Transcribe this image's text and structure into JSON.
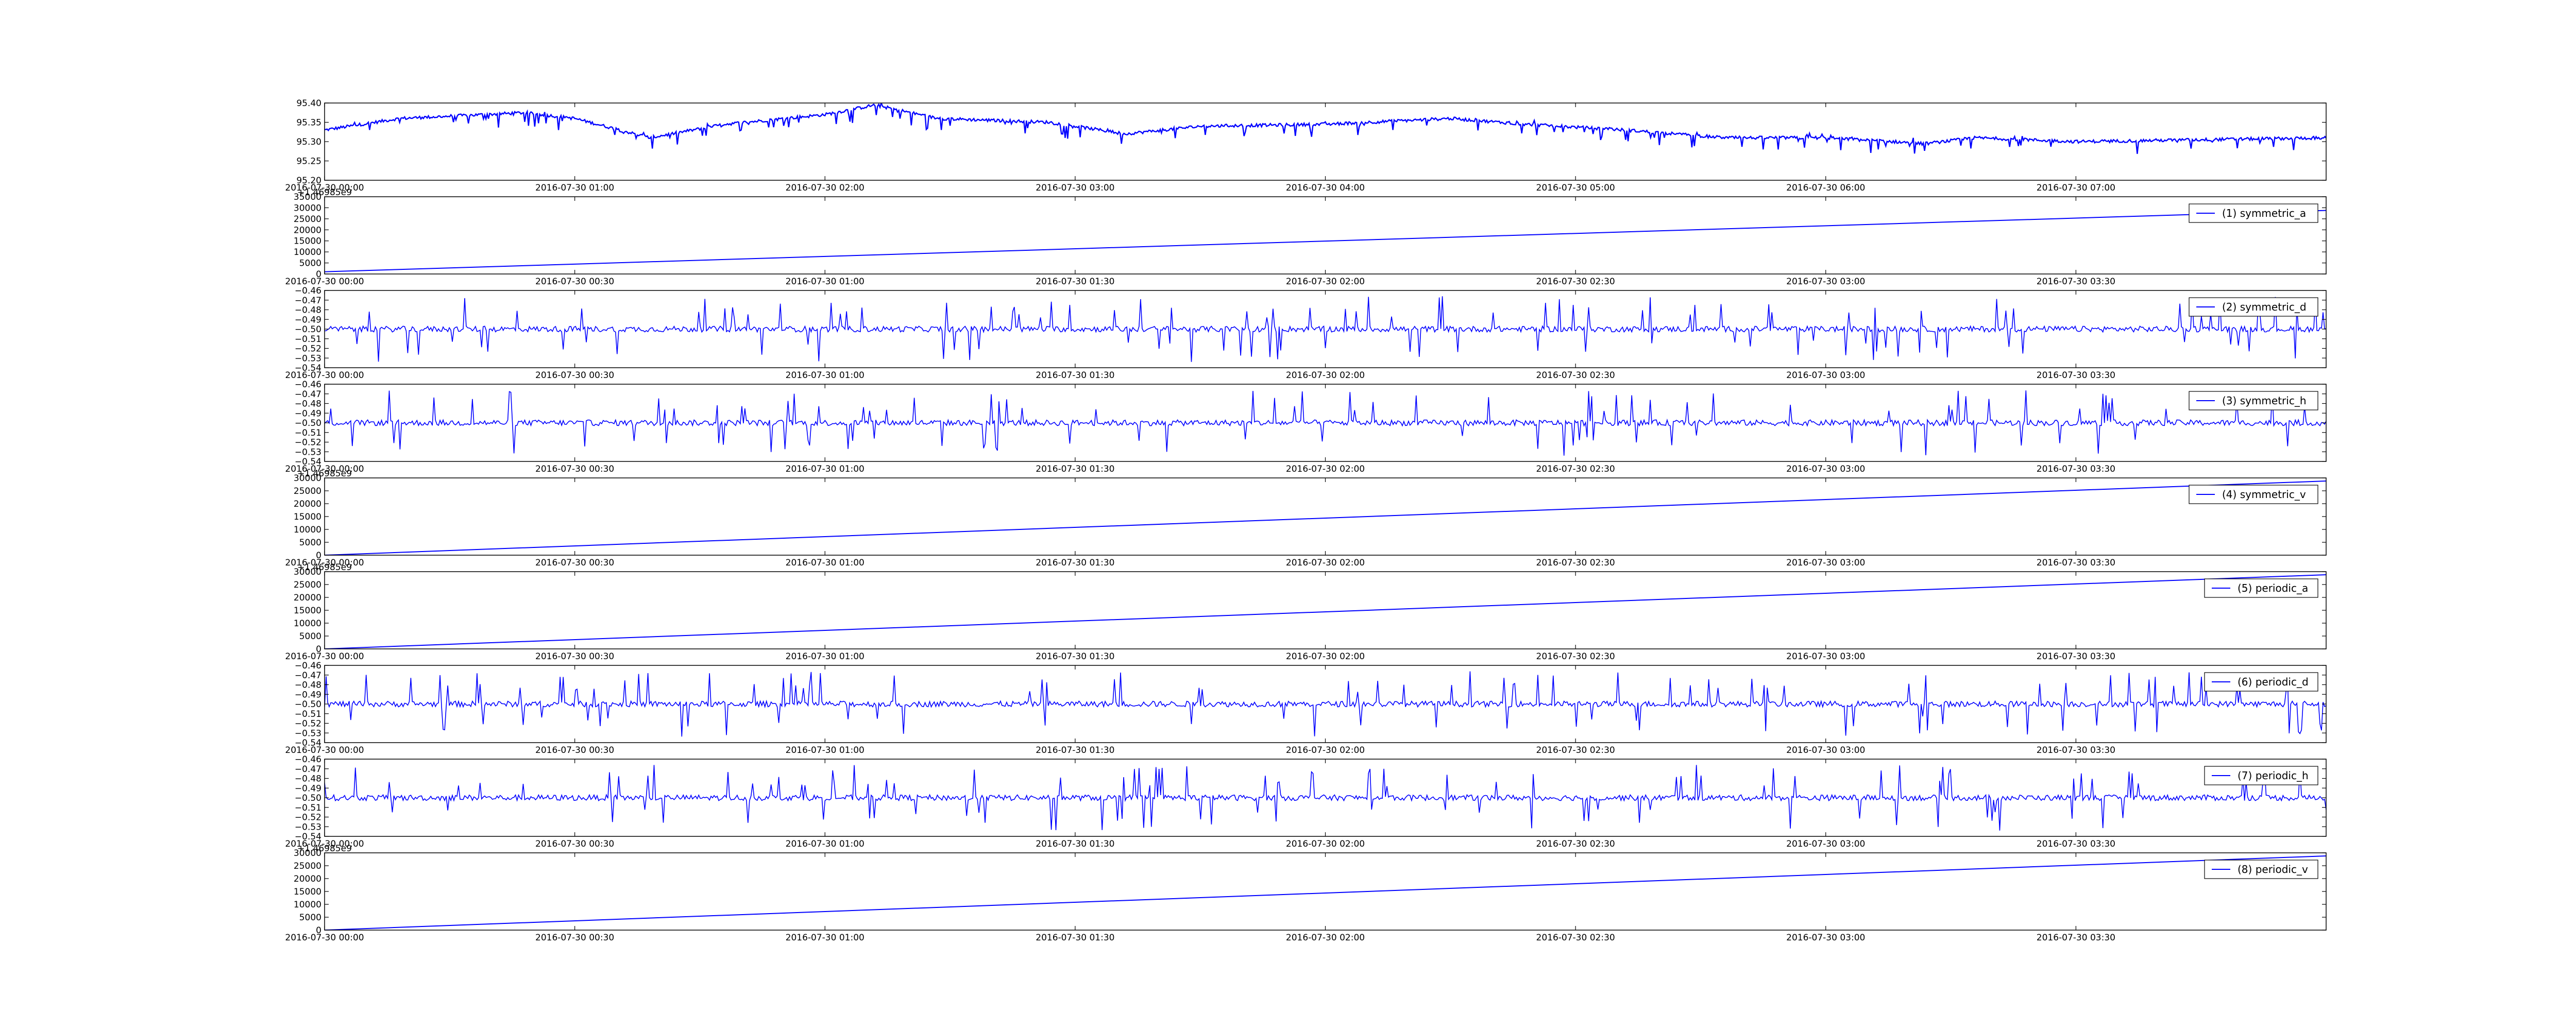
{
  "figure": {
    "background": "#ffffff",
    "line_color": "#0000ff"
  },
  "chart_data": [
    {
      "type": "line",
      "signal": "noisy",
      "xlim": [
        "2016-07-30 00:00",
        "2016-07-30 08:00"
      ],
      "x_ticks": [
        "2016-07-30 00:00",
        "2016-07-30 01:00",
        "2016-07-30 02:00",
        "2016-07-30 03:00",
        "2016-07-30 04:00",
        "2016-07-30 05:00",
        "2016-07-30 06:00",
        "2016-07-30 07:00"
      ],
      "ylim": [
        95.2,
        95.4
      ],
      "y_ticks": [
        "95.20",
        "95.25",
        "95.30",
        "95.35",
        "95.40"
      ],
      "offset_text": "",
      "legend": "",
      "trend": [
        [
          0,
          95.33
        ],
        [
          0.3,
          95.36
        ],
        [
          0.8,
          95.375
        ],
        [
          1.0,
          95.36
        ],
        [
          1.3,
          95.31
        ],
        [
          1.6,
          95.345
        ],
        [
          2.0,
          95.37
        ],
        [
          2.2,
          95.395
        ],
        [
          2.45,
          95.36
        ],
        [
          2.9,
          95.35
        ],
        [
          3.2,
          95.32
        ],
        [
          3.5,
          95.34
        ],
        [
          4.0,
          95.345
        ],
        [
          4.5,
          95.36
        ],
        [
          4.8,
          95.345
        ],
        [
          5.2,
          95.33
        ],
        [
          5.6,
          95.31
        ],
        [
          6.0,
          95.31
        ],
        [
          6.4,
          95.295
        ],
        [
          6.6,
          95.31
        ],
        [
          7.0,
          95.3
        ],
        [
          7.5,
          95.305
        ],
        [
          8.0,
          95.31
        ]
      ],
      "noise": 0.004,
      "spike_down": 0.035,
      "spike_up": 0.01
    },
    {
      "type": "line",
      "signal": "ramp",
      "xlim": [
        "2016-07-30 00:00",
        "2016-07-30 04:00"
      ],
      "x_ticks": [
        "2016-07-30 00:00",
        "2016-07-30 00:30",
        "2016-07-30 01:00",
        "2016-07-30 01:30",
        "2016-07-30 02:00",
        "2016-07-30 02:30",
        "2016-07-30 03:00",
        "2016-07-30 03:30"
      ],
      "ylim": [
        0,
        35000
      ],
      "y_ticks": [
        "0",
        "5000",
        "10000",
        "15000",
        "20000",
        "25000",
        "30000",
        "35000"
      ],
      "offset_text": "+1.46985e9",
      "ramp_x": [
        "2016-07-30 00:00",
        "2016-07-30 04:00"
      ],
      "ramp_y": [
        1000,
        28800
      ],
      "legend": "(1) symmetric_a"
    },
    {
      "type": "line",
      "signal": "noise",
      "xlim": [
        "2016-07-30 00:00",
        "2016-07-30 04:00"
      ],
      "x_ticks": [
        "2016-07-30 00:00",
        "2016-07-30 00:30",
        "2016-07-30 01:00",
        "2016-07-30 01:30",
        "2016-07-30 02:00",
        "2016-07-30 02:30",
        "2016-07-30 03:00",
        "2016-07-30 03:30"
      ],
      "ylim": [
        -0.54,
        -0.46
      ],
      "y_ticks": [
        "−0.54",
        "−0.53",
        "−0.52",
        "−0.51",
        "−0.50",
        "−0.49",
        "−0.48",
        "−0.47",
        "−0.46"
      ],
      "offset_text": "",
      "baseline": -0.5,
      "legend": "(2) symmetric_d"
    },
    {
      "type": "line",
      "signal": "noise",
      "xlim": [
        "2016-07-30 00:00",
        "2016-07-30 04:00"
      ],
      "x_ticks": [
        "2016-07-30 00:00",
        "2016-07-30 00:30",
        "2016-07-30 01:00",
        "2016-07-30 01:30",
        "2016-07-30 02:00",
        "2016-07-30 02:30",
        "2016-07-30 03:00",
        "2016-07-30 03:30"
      ],
      "ylim": [
        -0.54,
        -0.46
      ],
      "y_ticks": [
        "−0.54",
        "−0.53",
        "−0.52",
        "−0.51",
        "−0.50",
        "−0.49",
        "−0.48",
        "−0.47",
        "−0.46"
      ],
      "offset_text": "",
      "baseline": -0.5,
      "legend": "(3) symmetric_h"
    },
    {
      "type": "line",
      "signal": "ramp",
      "xlim": [
        "2016-07-30 00:00",
        "2016-07-30 04:00"
      ],
      "x_ticks": [
        "2016-07-30 00:00",
        "2016-07-30 00:30",
        "2016-07-30 01:00",
        "2016-07-30 01:30",
        "2016-07-30 02:00",
        "2016-07-30 02:30",
        "2016-07-30 03:00",
        "2016-07-30 03:30"
      ],
      "ylim": [
        0,
        30000
      ],
      "y_ticks": [
        "0",
        "5000",
        "10000",
        "15000",
        "20000",
        "25000",
        "30000"
      ],
      "offset_text": "+1.46985e9",
      "ramp_x": [
        "2016-07-30 00:00",
        "2016-07-30 04:00"
      ],
      "ramp_y": [
        0,
        28800
      ],
      "legend": "(4) symmetric_v"
    },
    {
      "type": "line",
      "signal": "ramp",
      "xlim": [
        "2016-07-30 00:00",
        "2016-07-30 04:00"
      ],
      "x_ticks": [
        "2016-07-30 00:00",
        "2016-07-30 00:30",
        "2016-07-30 01:00",
        "2016-07-30 01:30",
        "2016-07-30 02:00",
        "2016-07-30 02:30",
        "2016-07-30 03:00",
        "2016-07-30 03:30"
      ],
      "ylim": [
        0,
        30000
      ],
      "y_ticks": [
        "0",
        "5000",
        "10000",
        "15000",
        "20000",
        "25000",
        "30000"
      ],
      "offset_text": "+1.46985e9",
      "ramp_x": [
        "2016-07-30 00:00",
        "2016-07-30 04:00"
      ],
      "ramp_y": [
        0,
        28800
      ],
      "legend": "(5) periodic_a"
    },
    {
      "type": "line",
      "signal": "noise",
      "xlim": [
        "2016-07-30 00:00",
        "2016-07-30 04:00"
      ],
      "x_ticks": [
        "2016-07-30 00:00",
        "2016-07-30 00:30",
        "2016-07-30 01:00",
        "2016-07-30 01:30",
        "2016-07-30 02:00",
        "2016-07-30 02:30",
        "2016-07-30 03:00",
        "2016-07-30 03:30"
      ],
      "ylim": [
        -0.54,
        -0.46
      ],
      "y_ticks": [
        "−0.54",
        "−0.53",
        "−0.52",
        "−0.51",
        "−0.50",
        "−0.49",
        "−0.48",
        "−0.47",
        "−0.46"
      ],
      "offset_text": "",
      "baseline": -0.5,
      "legend": "(6) periodic_d"
    },
    {
      "type": "line",
      "signal": "noise",
      "xlim": [
        "2016-07-30 00:00",
        "2016-07-30 04:00"
      ],
      "x_ticks": [
        "2016-07-30 00:00",
        "2016-07-30 00:30",
        "2016-07-30 01:00",
        "2016-07-30 01:30",
        "2016-07-30 02:00",
        "2016-07-30 02:30",
        "2016-07-30 03:00",
        "2016-07-30 03:30"
      ],
      "ylim": [
        -0.54,
        -0.46
      ],
      "y_ticks": [
        "−0.54",
        "−0.53",
        "−0.52",
        "−0.51",
        "−0.50",
        "−0.49",
        "−0.48",
        "−0.47",
        "−0.46"
      ],
      "offset_text": "",
      "baseline": -0.5,
      "legend": "(7) periodic_h"
    },
    {
      "type": "line",
      "signal": "ramp",
      "xlim": [
        "2016-07-30 00:00",
        "2016-07-30 04:00"
      ],
      "x_ticks": [
        "2016-07-30 00:00",
        "2016-07-30 00:30",
        "2016-07-30 01:00",
        "2016-07-30 01:30",
        "2016-07-30 02:00",
        "2016-07-30 02:30",
        "2016-07-30 03:00",
        "2016-07-30 03:30"
      ],
      "ylim": [
        0,
        30000
      ],
      "y_ticks": [
        "0",
        "5000",
        "10000",
        "15000",
        "20000",
        "25000",
        "30000"
      ],
      "offset_text": "+1.46985e9",
      "ramp_x": [
        "2016-07-30 00:00",
        "2016-07-30 04:00"
      ],
      "ramp_y": [
        0,
        28800
      ],
      "legend": "(8) periodic_v"
    }
  ]
}
